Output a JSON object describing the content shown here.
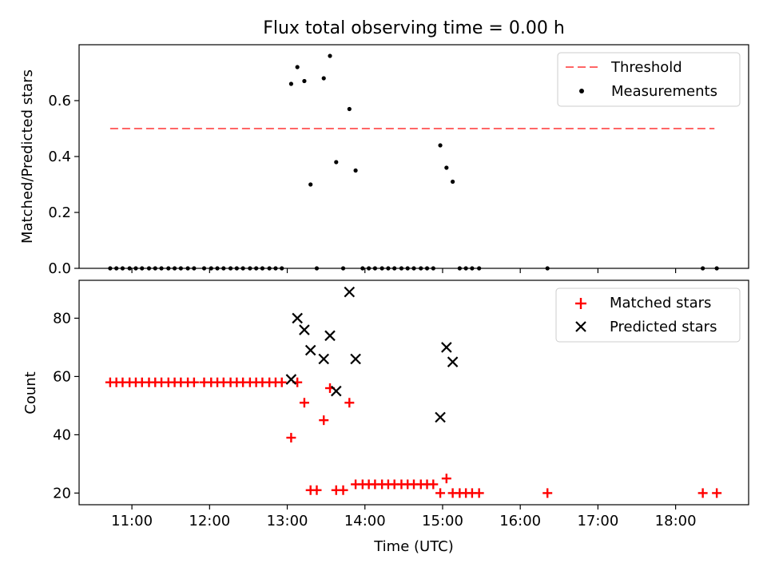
{
  "chart_data": {
    "type": "scatter",
    "title": "Flux total observing time = 0.00 h",
    "x_ticks": [
      "11:00",
      "12:00",
      "13:00",
      "14:00",
      "15:00",
      "16:00",
      "17:00",
      "18:00"
    ],
    "xlabel": "Time (UTC)",
    "top_panel": {
      "ylabel": "Matched/Predicted stars",
      "ylim": [
        0,
        0.8
      ],
      "y_ticks": [
        "0.0",
        "0.2",
        "0.4",
        "0.6"
      ],
      "threshold": {
        "name": "Threshold",
        "value": 0.5,
        "x_range": [
          10.72,
          18.5
        ],
        "color": "#ff6666"
      },
      "measurements": {
        "name": "Measurements",
        "color": "#000000",
        "x": [
          10.72,
          10.8,
          10.88,
          10.97,
          11.05,
          11.13,
          11.22,
          11.3,
          11.38,
          11.47,
          11.55,
          11.63,
          11.72,
          11.8,
          11.93,
          12.02,
          12.1,
          12.18,
          12.27,
          12.35,
          12.43,
          12.52,
          12.6,
          12.68,
          12.77,
          12.85,
          12.93,
          13.05,
          13.13,
          13.22,
          13.3,
          13.38,
          13.47,
          13.55,
          13.63,
          13.72,
          13.8,
          13.88,
          13.97,
          14.05,
          14.13,
          14.22,
          14.3,
          14.38,
          14.47,
          14.55,
          14.63,
          14.72,
          14.8,
          14.88,
          14.97,
          15.05,
          15.13,
          15.22,
          15.3,
          15.38,
          15.47,
          16.35,
          18.35,
          18.53
        ],
        "y": [
          0,
          0,
          0,
          0,
          0,
          0,
          0,
          0,
          0,
          0,
          0,
          0,
          0,
          0,
          0,
          0,
          0,
          0,
          0,
          0,
          0,
          0,
          0,
          0,
          0,
          0,
          0,
          0.66,
          0.72,
          0.67,
          0.3,
          0,
          0.68,
          0.76,
          0.38,
          0,
          0.57,
          0.35,
          0,
          0,
          0,
          0,
          0,
          0,
          0,
          0,
          0,
          0,
          0,
          0,
          0.44,
          0.36,
          0.31,
          0,
          0,
          0,
          0,
          0,
          0,
          0
        ]
      }
    },
    "bottom_panel": {
      "ylabel": "Count",
      "ylim": [
        16,
        93
      ],
      "y_ticks": [
        "20",
        "40",
        "60",
        "80"
      ],
      "matched": {
        "name": "Matched stars",
        "color": "#ff0000",
        "x": [
          10.72,
          10.8,
          10.88,
          10.97,
          11.05,
          11.13,
          11.22,
          11.3,
          11.38,
          11.47,
          11.55,
          11.63,
          11.72,
          11.8,
          11.93,
          12.02,
          12.1,
          12.18,
          12.27,
          12.35,
          12.43,
          12.52,
          12.6,
          12.68,
          12.77,
          12.85,
          12.93,
          13.05,
          13.13,
          13.22,
          13.3,
          13.38,
          13.47,
          13.55,
          13.63,
          13.72,
          13.8,
          13.88,
          13.97,
          14.05,
          14.13,
          14.22,
          14.3,
          14.38,
          14.47,
          14.55,
          14.63,
          14.72,
          14.8,
          14.88,
          14.97,
          15.05,
          15.13,
          15.22,
          15.3,
          15.38,
          15.47,
          16.35,
          18.35,
          18.53
        ],
        "y": [
          58,
          58,
          58,
          58,
          58,
          58,
          58,
          58,
          58,
          58,
          58,
          58,
          58,
          58,
          58,
          58,
          58,
          58,
          58,
          58,
          58,
          58,
          58,
          58,
          58,
          58,
          58,
          39,
          58,
          51,
          21,
          21,
          45,
          56,
          21,
          21,
          51,
          23,
          23,
          23,
          23,
          23,
          23,
          23,
          23,
          23,
          23,
          23,
          23,
          23,
          20,
          25,
          20,
          20,
          20,
          20,
          20,
          20,
          20,
          20
        ]
      },
      "predicted": {
        "name": "Predicted stars",
        "color": "#000000",
        "x": [
          13.05,
          13.13,
          13.22,
          13.3,
          13.47,
          13.55,
          13.63,
          13.8,
          13.88,
          14.97,
          15.05,
          15.13
        ],
        "y": [
          59,
          80,
          76,
          69,
          66,
          74,
          55,
          89,
          66,
          46,
          70,
          65
        ]
      }
    }
  }
}
